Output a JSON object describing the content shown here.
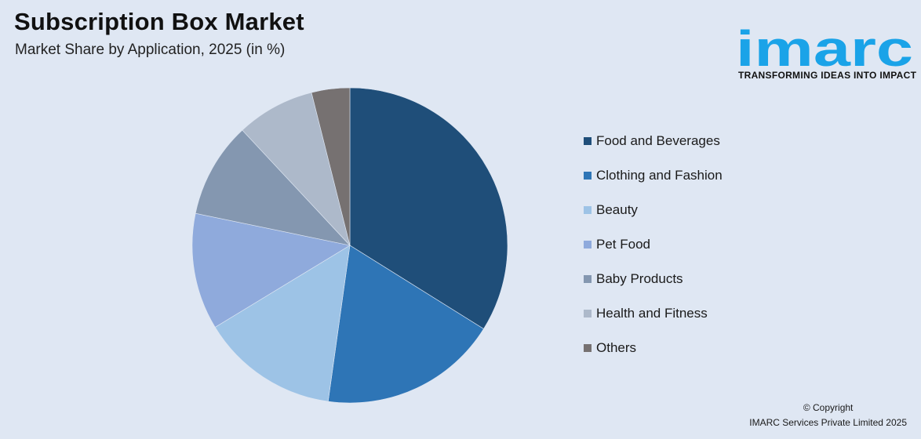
{
  "header": {
    "title": "Subscription Box Market",
    "subtitle": "Market Share by Application, 2025 (in %)"
  },
  "brand": {
    "logo_text": "imarc",
    "tagline": "TRANSFORMING IDEAS INTO IMPACT",
    "logo_color": "#1aa3e8"
  },
  "chart_data": {
    "type": "pie",
    "categories": [
      "Food and Beverages",
      "Clothing and Fashion",
      "Beauty",
      "Pet Food",
      "Baby Products",
      "Health and Fitness",
      "Others"
    ],
    "values": [
      34.6,
      18.7,
      14.4,
      12.2,
      10.0,
      8.2,
      4.0
    ],
    "colors": [
      "#1f4e79",
      "#2e75b6",
      "#9dc3e6",
      "#8faadc",
      "#8497b0",
      "#adb9ca",
      "#767171"
    ],
    "legend_position": "right"
  },
  "footer": {
    "copyright_line1": "© Copyright",
    "copyright_line2": "IMARC Services Private Limited 2025"
  }
}
